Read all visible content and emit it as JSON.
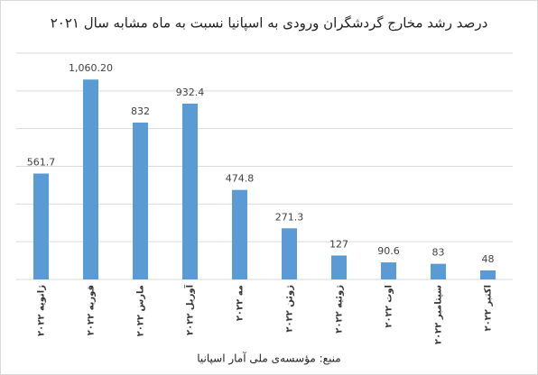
{
  "chart_data": {
    "type": "bar",
    "title": "درصد رشد مخارج گردشگران ورودی به اسپانیا نسبت به ماه مشابه سال ۲۰۲۱",
    "source": "منبع: مؤسسه‌ی ملی آمار اسپانیا",
    "categories": [
      "ژانویه ۲۰۲۲",
      "فوریه ۲۰۲۲",
      "مارس ۲۰۲۲",
      "آوریل ۲۰۲۲",
      "مه ۲۰۲۲",
      "ژوئن ۲۰۲۲",
      "ژوئیه ۲۰۲۲",
      "اوت ۲۰۲۲",
      "سپتامبر ۲۰۲۲",
      "اکتبر ۲۰۲۲"
    ],
    "values": [
      561.7,
      1060.2,
      832,
      932.4,
      474.8,
      271.3,
      127,
      90.6,
      83,
      48
    ],
    "value_labels": [
      "561.7",
      "1,060.20",
      "832",
      "932.4",
      "474.8",
      "271.3",
      "127",
      "90.6",
      "83",
      "48"
    ],
    "color": "#5b9bd5",
    "ylim": [
      0,
      1200
    ],
    "yticks": [
      0,
      200,
      400,
      600,
      800,
      1000,
      1200
    ],
    "grid": true
  }
}
